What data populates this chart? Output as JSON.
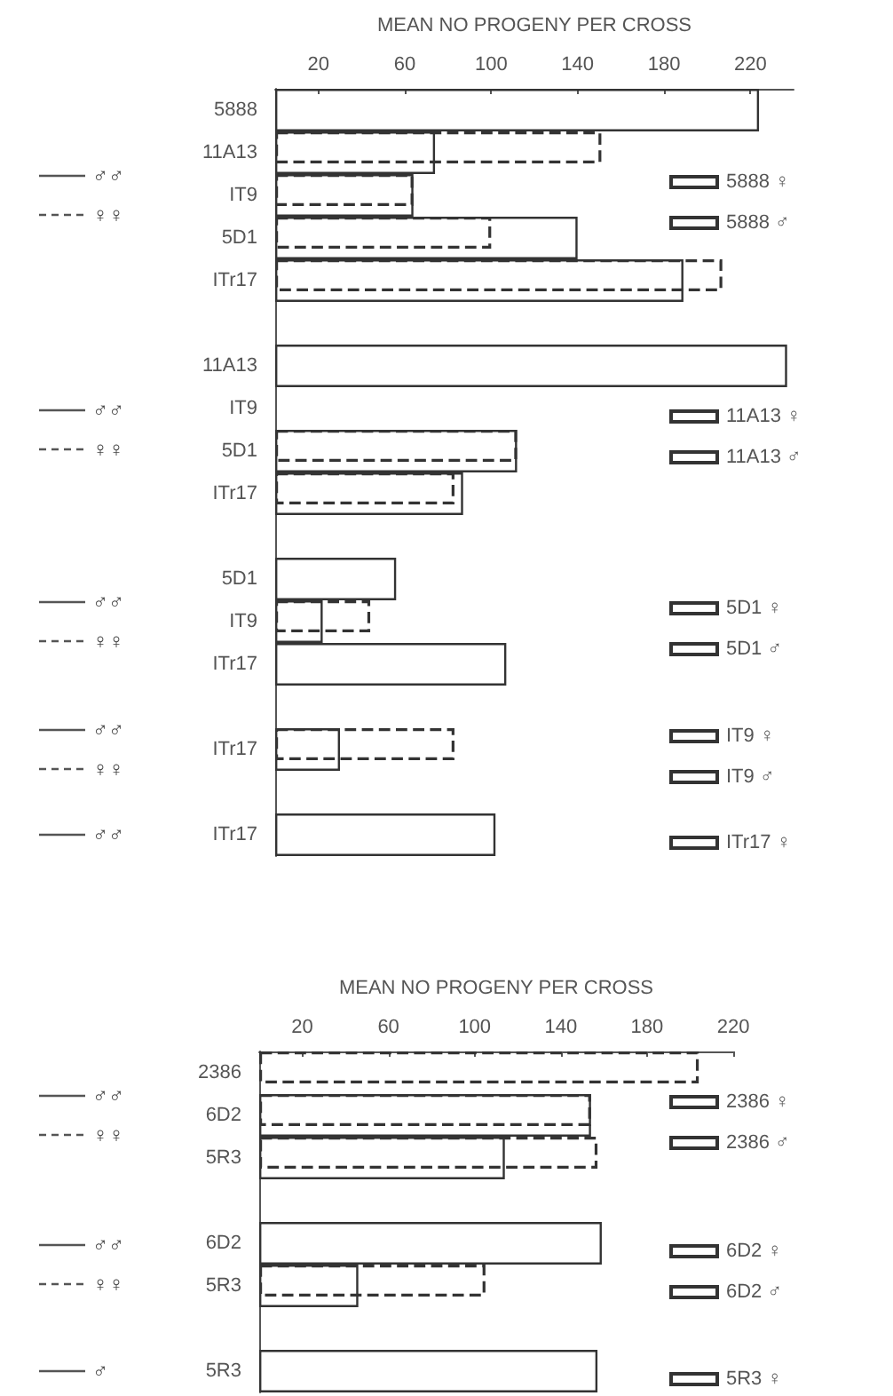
{
  "chart_data": [
    {
      "type": "bar",
      "orientation": "horizontal",
      "xlabel": "MEAN NO PROGENY PER CROSS",
      "categories": [
        "5888",
        "11A13",
        "IT9",
        "5D1",
        "ITr17",
        null,
        "11A13",
        "IT9",
        "5D1",
        "ITr17",
        null,
        "5D1",
        "IT9",
        "ITr17",
        null,
        "ITr17",
        null,
        "ITr17"
      ],
      "xlim": [
        0,
        240
      ],
      "xticks": [
        20,
        60,
        100,
        140,
        180,
        220
      ],
      "grid": false,
      "legend": "right",
      "annotations": [
        "♂♂",
        "♀♀",
        "♂♂",
        "♀♀",
        "♂♂",
        "♀♀",
        "♂♂",
        "♀♀",
        "♂♂"
      ],
      "series": [
        {
          "name": "5888 ♀",
          "color": "#333333",
          "line_style": "solid",
          "values": [
            224,
            74,
            64,
            140,
            189,
            null,
            null,
            null,
            null,
            null,
            null,
            null,
            null,
            null,
            null,
            null,
            null,
            null
          ]
        },
        {
          "name": "5888 ♂",
          "color": "#333333",
          "line_style": "dashed",
          "values": [
            null,
            151,
            64,
            100,
            207,
            null,
            null,
            null,
            null,
            null,
            null,
            null,
            null,
            null,
            null,
            null,
            null,
            null
          ]
        },
        {
          "name": "11A13 ♀",
          "color": "#333333",
          "line_style": "solid",
          "values": [
            null,
            null,
            null,
            null,
            null,
            null,
            237,
            null,
            112,
            87,
            null,
            null,
            null,
            null,
            null,
            null,
            null,
            null
          ]
        },
        {
          "name": "11A13 ♂",
          "color": "#333333",
          "line_style": "dashed",
          "values": [
            null,
            null,
            null,
            null,
            null,
            null,
            null,
            null,
            112,
            83,
            null,
            null,
            null,
            null,
            null,
            null,
            null,
            null
          ]
        },
        {
          "name": "5D1 ♀",
          "color": "#333333",
          "line_style": "solid",
          "values": [
            null,
            null,
            null,
            null,
            null,
            null,
            null,
            null,
            null,
            null,
            null,
            56,
            22,
            107,
            null,
            null,
            null,
            null
          ]
        },
        {
          "name": "5D1 ♂",
          "color": "#333333",
          "line_style": "dashed",
          "values": [
            null,
            null,
            null,
            null,
            null,
            null,
            null,
            null,
            null,
            null,
            null,
            null,
            44,
            null,
            null,
            null,
            null,
            null
          ]
        },
        {
          "name": "IT9 ♀",
          "color": "#333333",
          "line_style": "solid",
          "values": [
            null,
            null,
            null,
            null,
            null,
            null,
            null,
            null,
            null,
            null,
            null,
            null,
            null,
            null,
            null,
            30,
            null,
            null
          ]
        },
        {
          "name": "IT9 ♂",
          "color": "#333333",
          "line_style": "dashed",
          "values": [
            null,
            null,
            null,
            null,
            null,
            null,
            null,
            null,
            null,
            null,
            null,
            null,
            null,
            null,
            null,
            83,
            null,
            null
          ]
        },
        {
          "name": "ITr17 ♀",
          "color": "#333333",
          "line_style": "solid",
          "values": [
            null,
            null,
            null,
            null,
            null,
            null,
            null,
            null,
            null,
            null,
            null,
            null,
            null,
            null,
            null,
            null,
            null,
            102
          ]
        }
      ]
    },
    {
      "type": "bar",
      "orientation": "horizontal",
      "xlabel": "MEAN NO PROGENY PER CROSS",
      "categories": [
        "2386",
        "6D2",
        "5R3",
        null,
        "6D2",
        "5R3",
        null,
        "5R3"
      ],
      "xlim": [
        0,
        220
      ],
      "xticks": [
        20,
        60,
        100,
        140,
        180,
        220
      ],
      "grid": false,
      "legend": "right",
      "annotations": [
        "♂♂",
        "♀♀",
        "♂♂",
        "♀♀",
        "♂"
      ],
      "series": [
        {
          "name": "2386 ♀",
          "color": "#333333",
          "line_style": "solid",
          "values": [
            null,
            154,
            114,
            null,
            null,
            null,
            null,
            null
          ]
        },
        {
          "name": "2386 ♂",
          "color": "#333333",
          "line_style": "dashed",
          "values": [
            204,
            154,
            157,
            null,
            null,
            null,
            null,
            null
          ]
        },
        {
          "name": "6D2 ♀",
          "color": "#333333",
          "line_style": "solid",
          "values": [
            null,
            null,
            null,
            null,
            159,
            46,
            null,
            null
          ]
        },
        {
          "name": "6D2 ♂",
          "color": "#333333",
          "line_style": "dashed",
          "values": [
            null,
            null,
            null,
            null,
            null,
            105,
            null,
            null
          ]
        },
        {
          "name": "5R3 ♀",
          "color": "#333333",
          "line_style": "solid",
          "values": [
            null,
            null,
            null,
            null,
            null,
            null,
            null,
            157
          ]
        }
      ]
    }
  ]
}
